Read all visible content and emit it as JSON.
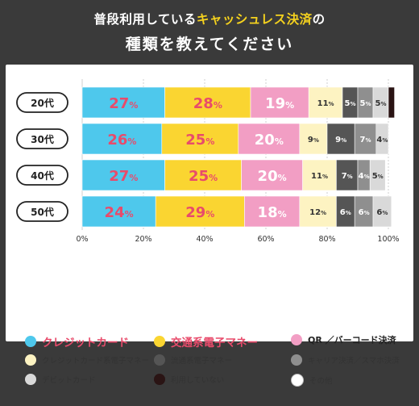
{
  "header": {
    "title_prefix": "普段利用している",
    "title_accent": "キャッシュレス決済",
    "title_suffix": "の",
    "title_line2": "種類を教えてください"
  },
  "colors": {
    "background": "#3a3a3a",
    "accent_yellow": "#f5d21e",
    "legend_highlight": "#e84b6b"
  },
  "chart_data": {
    "type": "bar",
    "orientation": "horizontal",
    "stacked": true,
    "categories": [
      "20代",
      "30代",
      "40代",
      "50代"
    ],
    "x_ticks": [
      "0%",
      "20%",
      "40%",
      "60%",
      "80%",
      "100%"
    ],
    "xlim": [
      0,
      100
    ],
    "grid": true,
    "legend_position": "bottom",
    "series": [
      {
        "name": "クレジットカード",
        "color": "#4ec8ec",
        "text_color": "#e84b6b",
        "values": [
          27,
          26,
          27,
          24
        ]
      },
      {
        "name": "交通系電子マネー",
        "color": "#fad531",
        "text_color": "#e84b6b",
        "values": [
          28,
          25,
          25,
          29
        ]
      },
      {
        "name": "QR ／バーコード決済",
        "color": "#f29ec4",
        "text_color": "#ffffff",
        "values": [
          19,
          20,
          20,
          18
        ]
      },
      {
        "name": "クレジットカード系電子マネー",
        "color": "#fdf3c2",
        "text_color": "#333333",
        "values": [
          11,
          9,
          11,
          12
        ]
      },
      {
        "name": "流通系電子マネー",
        "color": "#555555",
        "text_color": "#ffffff",
        "values": [
          5,
          9,
          7,
          6
        ]
      },
      {
        "name": "キャリア決済／スマホ決済",
        "color": "#8f8f8f",
        "text_color": "#ffffff",
        "values": [
          5,
          7,
          4,
          6
        ]
      },
      {
        "name": "デビットカード",
        "color": "#d9d9d9",
        "text_color": "#333333",
        "values": [
          5,
          4,
          5,
          6
        ]
      },
      {
        "name": "利用していない",
        "color": "#2a1414",
        "text_color": "#ffffff",
        "values": [
          2,
          0,
          0,
          0
        ]
      },
      {
        "name": "その他",
        "color": "#ffffff",
        "text_color": "#333333",
        "values": [
          0,
          0,
          0,
          0
        ]
      }
    ]
  },
  "legend": {
    "items": [
      {
        "label": "クレジットカード",
        "color": "#4ec8ec",
        "style": "big"
      },
      {
        "label": "交通系電子マネー",
        "color": "#fad531",
        "style": "big"
      },
      {
        "label": "QR ／バーコード決済",
        "color": "#f29ec4",
        "style": "mid"
      },
      {
        "label": "クレジットカード系電子マネー",
        "color": "#fdf3c2",
        "style": "small"
      },
      {
        "label": "流通系電子マネー",
        "color": "#555555",
        "style": "small"
      },
      {
        "label": "キャリア決済／スマホ決済",
        "color": "#8f8f8f",
        "style": "small"
      },
      {
        "label": "デビットカード",
        "color": "#d9d9d9",
        "style": "small"
      },
      {
        "label": "利用していない",
        "color": "#2a1414",
        "style": "small"
      },
      {
        "label": "その他",
        "color": "#ffffff",
        "style": "small"
      }
    ]
  }
}
